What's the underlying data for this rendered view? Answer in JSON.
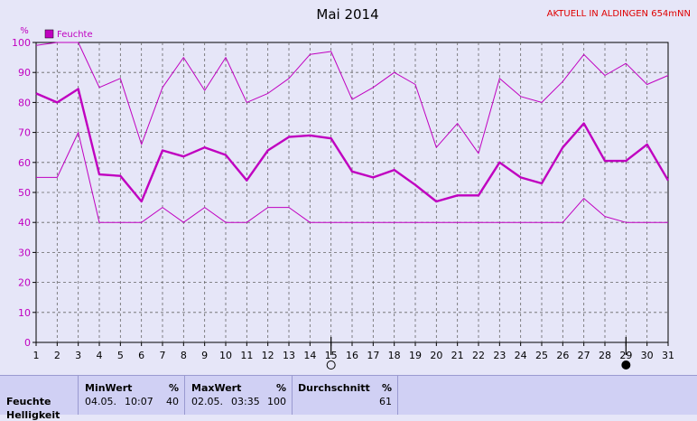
{
  "header": {
    "status": "AKTUELL IN ALDINGEN 654mNN"
  },
  "chart_data": {
    "type": "line",
    "title": "Mai 2014",
    "ylabel": "%",
    "ylim": [
      0,
      100
    ],
    "yticks": [
      0,
      10,
      20,
      30,
      40,
      50,
      60,
      70,
      80,
      90,
      100
    ],
    "x": [
      1,
      2,
      3,
      4,
      5,
      6,
      7,
      8,
      9,
      10,
      11,
      12,
      13,
      14,
      15,
      16,
      17,
      18,
      19,
      20,
      21,
      22,
      23,
      24,
      25,
      26,
      27,
      28,
      29,
      30,
      31
    ],
    "grid": true,
    "legend": [
      "Feuchte"
    ],
    "series": [
      {
        "name": "Feuchte",
        "role": "avg",
        "color": "#c000c0",
        "values": [
          83,
          80,
          84.5,
          56,
          55.5,
          47,
          64,
          62,
          65,
          62.5,
          54,
          64,
          68.5,
          69,
          68,
          57,
          55,
          57.5,
          52.5,
          47,
          49,
          49,
          60,
          55,
          53,
          65,
          73,
          60.5,
          60.5,
          66,
          54
        ]
      },
      {
        "role": "max",
        "color": "#c000c0",
        "values": [
          99,
          100,
          100,
          85,
          88,
          66,
          85,
          95,
          84,
          95,
          80,
          83,
          88,
          96,
          97,
          81,
          85,
          90,
          86,
          65,
          73,
          63,
          88,
          82,
          80,
          87,
          96,
          89,
          93,
          86,
          89
        ]
      },
      {
        "role": "min",
        "color": "#c000c0",
        "values": [
          55,
          55,
          70,
          40,
          40,
          40,
          45,
          40,
          45,
          40,
          40,
          45,
          45,
          40,
          40,
          40,
          40,
          40,
          40,
          40,
          40,
          40,
          40,
          40,
          40,
          40,
          48,
          42,
          40,
          40,
          40
        ]
      }
    ],
    "markers": [
      {
        "day": 15,
        "type": "moon-empty"
      },
      {
        "day": 29,
        "type": "moon-full"
      }
    ]
  },
  "stats": {
    "row_label": "Feuchte",
    "row_label_2": "Helligkeit",
    "min": {
      "header": "MinWert",
      "unit": "%",
      "date": "04.05.",
      "time": "10:07",
      "value": "40"
    },
    "max": {
      "header": "MaxWert",
      "unit": "%",
      "date": "02.05.",
      "time": "03:35",
      "value": "100"
    },
    "avg": {
      "header": "Durchschnitt",
      "unit": "%",
      "value": "61"
    }
  }
}
